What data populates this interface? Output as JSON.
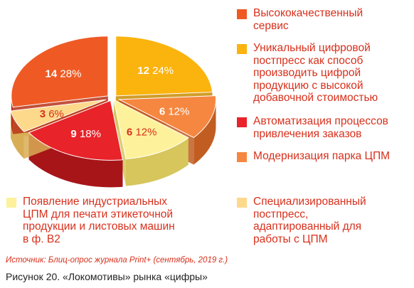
{
  "chart_data": {
    "type": "pie",
    "slices": [
      {
        "label": "Высококачественный\nсервис",
        "count": "14",
        "percent": "28%",
        "value": 28,
        "color": "#ef5a24",
        "side": "#b9321a"
      },
      {
        "label": "Уникальный цифровой\nпостпресс как способ\nпроизводить цифрой\nпродукцию с высокой\nдобавочной стоимостью",
        "count": "12",
        "percent": "24%",
        "value": 24,
        "color": "#fbb30e",
        "side": "#c98c05"
      },
      {
        "label": "Автоматизация процессов\nпривлечения заказов",
        "count": "9",
        "percent": "18%",
        "value": 18,
        "color": "#e8232a",
        "side": "#a81519"
      },
      {
        "label": "Модернизация парка ЦПМ",
        "count": "6",
        "percent": "12%",
        "value": 12,
        "color": "#f58740",
        "side": "#c25d22"
      },
      {
        "label": "Появление индустриальных\nЦПМ для печати этикеточной\nпродукции и листовых машин\nв ф. В2",
        "count": "6",
        "percent": "12%",
        "value": 12,
        "color": "#fdf29b",
        "side": "#d6c65c"
      },
      {
        "label": "Специализированный\nпостпресс,\nадаптированный для\nработы с ЦПМ",
        "count": "3",
        "percent": "6%",
        "value": 6,
        "color": "#fdd98c",
        "side": "#d8ad55"
      }
    ]
  },
  "source_text": "Источник: Блиц-опрос журнала Print+ (сентябрь, 2019 г.)",
  "caption_text": "Рисунок 20. «Локомотивы» рынка «цифры»"
}
